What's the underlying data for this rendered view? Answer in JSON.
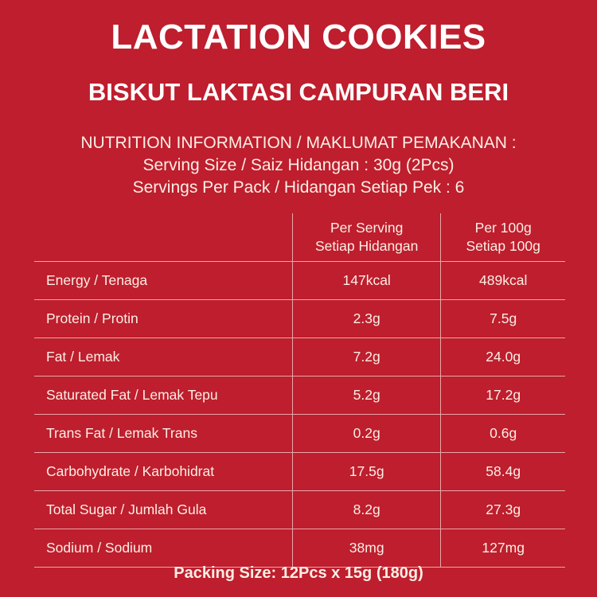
{
  "title": "LACTATION COOKIES",
  "subtitle": "BISKUT LAKTASI CAMPURAN BERI",
  "info": {
    "heading": "NUTRITION INFORMATION / MAKLUMAT PEMAKANAN :",
    "serving_size": "Serving Size / Saiz Hidangan : 30g  (2Pcs)",
    "servings_per_pack": "Servings Per Pack / Hidangan Setiap Pek : 6"
  },
  "table": {
    "headers": [
      {
        "line1": "Per Serving",
        "line2": "Setiap Hidangan"
      },
      {
        "line1": "Per 100g",
        "line2": "Setiap 100g"
      }
    ],
    "rows": [
      {
        "name": "Energy / Tenaga",
        "per_serving": "147kcal",
        "per_100g": "489kcal"
      },
      {
        "name": "Protein / Protin",
        "per_serving": "2.3g",
        "per_100g": "7.5g"
      },
      {
        "name": "Fat / Lemak",
        "per_serving": "7.2g",
        "per_100g": "24.0g"
      },
      {
        "name": "Saturated Fat / Lemak Tepu",
        "per_serving": "5.2g",
        "per_100g": "17.2g"
      },
      {
        "name": "Trans Fat / Lemak Trans",
        "per_serving": "0.2g",
        "per_100g": "0.6g"
      },
      {
        "name": "Carbohydrate / Karbohidrat",
        "per_serving": "17.5g",
        "per_100g": "58.4g"
      },
      {
        "name": "Total Sugar / Jumlah Gula",
        "per_serving": "8.2g",
        "per_100g": "27.3g"
      },
      {
        "name": "Sodium / Sodium",
        "per_serving": "38mg",
        "per_100g": "127mg"
      }
    ]
  },
  "packing_size": "Packing Size: 12Pcs x 15g (180g)",
  "colors": {
    "background": "#be1e2d",
    "text": "#fbeee6"
  }
}
